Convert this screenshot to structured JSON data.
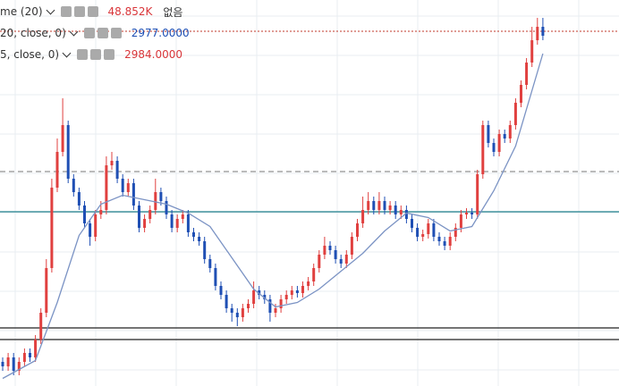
{
  "chart_data": {
    "type": "candlestick",
    "ylim": [
      2233,
      3097
    ],
    "up_color": "#e0403f",
    "down_color": "#1f4fb4",
    "open": [
      2287,
      2277,
      2297,
      2267,
      2287,
      2307,
      2297,
      2337,
      2397,
      2497,
      2677,
      2757,
      2817,
      2697,
      2667,
      2637,
      2597,
      2567,
      2617,
      2627,
      2727,
      2737,
      2697,
      2667,
      2687,
      2637,
      2587,
      2607,
      2627,
      2667,
      2647,
      2617,
      2587,
      2607,
      2617,
      2577,
      2567,
      2557,
      2517,
      2497,
      2457,
      2437,
      2407,
      2397,
      2387,
      2407,
      2417,
      2447,
      2437,
      2427,
      2397,
      2407,
      2427,
      2437,
      2447,
      2441,
      2457,
      2467,
      2497,
      2527,
      2547,
      2537,
      2517,
      2507,
      2527,
      2567,
      2597,
      2627,
      2647,
      2627,
      2647,
      2627,
      2637,
      2617,
      2627,
      2607,
      2587,
      2567,
      2573,
      2597,
      2567,
      2557,
      2547,
      2567,
      2587,
      2617,
      2621,
      2617,
      2707,
      2817,
      2777,
      2757,
      2797,
      2787,
      2817,
      2867,
      2907,
      2957,
      3007,
      3037
    ],
    "high": [
      2297,
      2307,
      2307,
      2297,
      2317,
      2317,
      2347,
      2407,
      2517,
      2697,
      2787,
      2877,
      2827,
      2707,
      2677,
      2647,
      2607,
      2627,
      2647,
      2747,
      2757,
      2747,
      2707,
      2697,
      2697,
      2647,
      2617,
      2637,
      2697,
      2677,
      2657,
      2627,
      2617,
      2627,
      2627,
      2587,
      2577,
      2567,
      2527,
      2507,
      2467,
      2447,
      2417,
      2407,
      2417,
      2427,
      2467,
      2457,
      2447,
      2437,
      2417,
      2437,
      2447,
      2457,
      2457,
      2467,
      2477,
      2507,
      2537,
      2567,
      2557,
      2547,
      2527,
      2537,
      2577,
      2607,
      2657,
      2667,
      2657,
      2667,
      2657,
      2647,
      2647,
      2637,
      2637,
      2617,
      2597,
      2583,
      2607,
      2607,
      2577,
      2567,
      2577,
      2597,
      2627,
      2631,
      2631,
      2717,
      2827,
      2827,
      2787,
      2807,
      2807,
      2827,
      2877,
      2917,
      2967,
      3037,
      3057,
      3057
    ],
    "low": [
      2267,
      2267,
      2257,
      2257,
      2277,
      2287,
      2287,
      2327,
      2387,
      2487,
      2667,
      2747,
      2687,
      2657,
      2627,
      2587,
      2547,
      2557,
      2607,
      2617,
      2717,
      2687,
      2657,
      2657,
      2627,
      2577,
      2577,
      2597,
      2617,
      2637,
      2607,
      2577,
      2577,
      2597,
      2567,
      2557,
      2547,
      2507,
      2487,
      2447,
      2427,
      2397,
      2377,
      2367,
      2377,
      2397,
      2407,
      2427,
      2417,
      2377,
      2387,
      2397,
      2417,
      2427,
      2431,
      2431,
      2447,
      2457,
      2487,
      2517,
      2527,
      2507,
      2497,
      2497,
      2517,
      2557,
      2587,
      2617,
      2617,
      2617,
      2617,
      2617,
      2607,
      2607,
      2597,
      2577,
      2557,
      2557,
      2563,
      2557,
      2547,
      2537,
      2537,
      2557,
      2577,
      2607,
      2607,
      2607,
      2697,
      2767,
      2747,
      2747,
      2777,
      2777,
      2807,
      2857,
      2897,
      2947,
      2997,
      3007
    ],
    "close": [
      2277,
      2297,
      2267,
      2287,
      2307,
      2297,
      2337,
      2397,
      2497,
      2677,
      2757,
      2817,
      2697,
      2667,
      2637,
      2597,
      2567,
      2617,
      2627,
      2727,
      2737,
      2697,
      2667,
      2687,
      2637,
      2587,
      2607,
      2627,
      2667,
      2647,
      2617,
      2587,
      2607,
      2617,
      2577,
      2567,
      2557,
      2517,
      2497,
      2457,
      2437,
      2407,
      2397,
      2387,
      2407,
      2417,
      2447,
      2437,
      2427,
      2397,
      2407,
      2427,
      2437,
      2447,
      2441,
      2457,
      2467,
      2497,
      2527,
      2547,
      2537,
      2517,
      2507,
      2527,
      2567,
      2597,
      2627,
      2647,
      2627,
      2647,
      2627,
      2637,
      2617,
      2627,
      2607,
      2587,
      2567,
      2573,
      2597,
      2567,
      2557,
      2547,
      2567,
      2587,
      2617,
      2621,
      2617,
      2707,
      2817,
      2777,
      2757,
      2797,
      2787,
      2817,
      2867,
      2907,
      2957,
      3007,
      3037,
      3017
    ],
    "ma": {
      "color": "#7b93c4",
      "x": [
        0,
        6,
        10,
        14,
        18,
        22,
        26,
        30,
        34,
        38,
        42,
        46,
        50,
        54,
        58,
        62,
        66,
        70,
        74,
        78,
        82,
        86,
        90,
        94,
        99
      ],
      "values": [
        2250,
        2290,
        2420,
        2570,
        2640,
        2660,
        2650,
        2640,
        2620,
        2590,
        2520,
        2450,
        2410,
        2420,
        2450,
        2490,
        2530,
        2580,
        2620,
        2610,
        2580,
        2590,
        2670,
        2770,
        2977
      ]
    },
    "levels": [
      {
        "value": 3027,
        "color": "#c0392b",
        "style": "dotted"
      },
      {
        "value": 2713,
        "color": "#777777",
        "style": "dashed"
      },
      {
        "value": 2623,
        "color": "#1d7f8a",
        "style": "solid"
      },
      {
        "value": 2363,
        "color": "#222222",
        "style": "solid"
      },
      {
        "value": 2337,
        "color": "#222222",
        "style": "solid"
      }
    ]
  },
  "legend": [
    {
      "label": "me (20)",
      "value": "48.852K",
      "extra": "없음"
    },
    {
      "label": "20, close, 0)",
      "value": "2977.0000"
    },
    {
      "label": "5, close, 0)",
      "value": "2984.0000"
    }
  ]
}
